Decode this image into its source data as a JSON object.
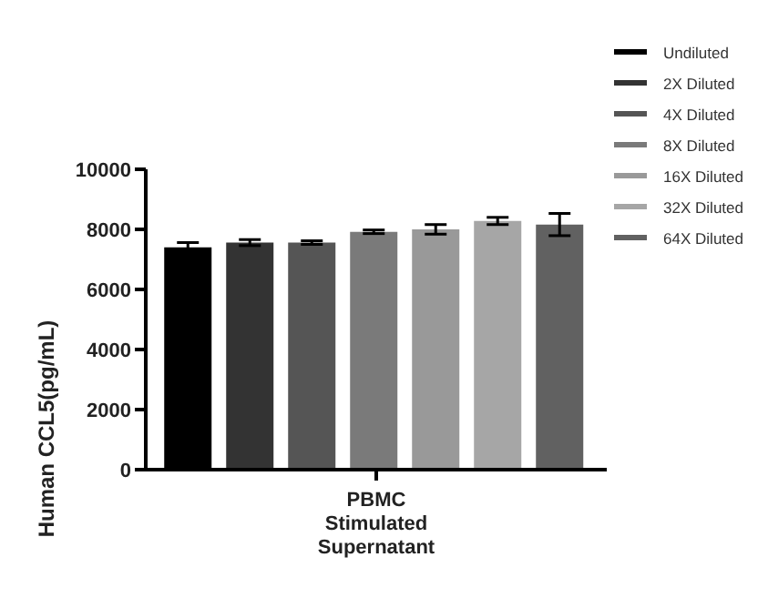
{
  "chart_data": {
    "type": "bar",
    "ylabel": "Human CCL5(pg/mL)",
    "categories": [
      "PBMC Stimulated Supernatant"
    ],
    "series": [
      {
        "name": "Undiluted",
        "color": "#000000",
        "values": [
          7400
        ],
        "errors": [
          160
        ]
      },
      {
        "name": "2X Diluted",
        "color": "#333333",
        "values": [
          7560
        ],
        "errors": [
          100
        ]
      },
      {
        "name": "4X Diluted",
        "color": "#555555",
        "values": [
          7560
        ],
        "errors": [
          60
        ]
      },
      {
        "name": "8X Diluted",
        "color": "#7a7a7a",
        "values": [
          7920
        ],
        "errors": [
          60
        ]
      },
      {
        "name": "16X Diluted",
        "color": "#999999",
        "values": [
          8000
        ],
        "errors": [
          160
        ]
      },
      {
        "name": "32X Diluted",
        "color": "#a6a6a6",
        "values": [
          8280
        ],
        "errors": [
          120
        ]
      },
      {
        "name": "64X Diluted",
        "color": "#616161",
        "values": [
          8160
        ],
        "errors": [
          370
        ]
      }
    ],
    "ylim": [
      0,
      10000
    ],
    "yticks": [
      0,
      2000,
      4000,
      6000,
      8000,
      10000
    ],
    "legend": "top right"
  }
}
